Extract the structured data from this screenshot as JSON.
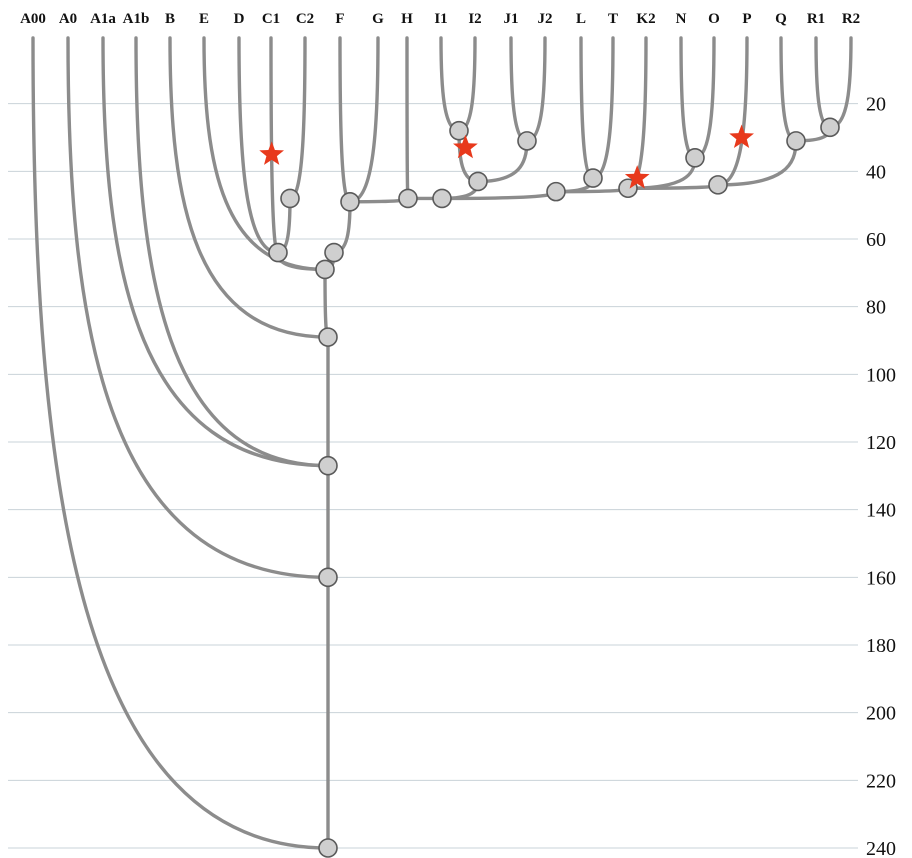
{
  "tree": {
    "tips": [
      "A00",
      "A0",
      "A1a",
      "A1b",
      "B",
      "E",
      "D",
      "C1",
      "C2",
      "F",
      "G",
      "H",
      "I1",
      "I2",
      "J1",
      "J2",
      "L",
      "T",
      "K2",
      "N",
      "O",
      "P",
      "Q",
      "R1",
      "R2"
    ],
    "axis_ticks": [
      20,
      40,
      60,
      80,
      100,
      120,
      140,
      160,
      180,
      200,
      220,
      240
    ],
    "axis_range": [
      0,
      240
    ],
    "colors": {
      "branch": "#8c8c8c",
      "node_fill": "#cfcfcf",
      "node_stroke": "#5a5a5a",
      "star": "#e8391c",
      "grid": "#c9d3d8"
    },
    "nodes": {
      "n_root": 240,
      "n_a0": 160,
      "n_a1": 127,
      "n_b": 89,
      "n_cf": 69,
      "n_c": 64,
      "n_c2": 48,
      "n_f": 64,
      "n_fg": 49,
      "n_h": 48,
      "n_i": 48,
      "n_ij": 43,
      "n_i1": 28,
      "n_j": 31,
      "n_k": 46,
      "n_lt": 42,
      "n_kno": 45,
      "n_no": 36,
      "n_op": 44,
      "n_q": 31,
      "n_r": 27
    },
    "edges": [
      [
        "A00",
        "n_root"
      ],
      [
        "n_a0",
        "n_root"
      ],
      [
        "A0",
        "n_a0"
      ],
      [
        "n_a1",
        "n_a0"
      ],
      [
        "A1a",
        "n_a1"
      ],
      [
        "A1b",
        "n_a1"
      ],
      [
        "n_b",
        "n_a1"
      ],
      [
        "B",
        "n_b"
      ],
      [
        "n_cf",
        "n_b"
      ],
      [
        "E",
        "n_cf"
      ],
      [
        "n_c",
        "n_cf"
      ],
      [
        "D",
        "n_c"
      ],
      [
        "C1",
        "n_c"
      ],
      [
        "n_c2",
        "n_c"
      ],
      [
        "C2",
        "n_c2"
      ],
      [
        "n_f",
        "n_cf"
      ],
      [
        "F",
        "n_fg"
      ],
      [
        "G",
        "n_fg"
      ],
      [
        "n_fg",
        "n_f"
      ],
      [
        "n_h",
        "n_fg"
      ],
      [
        "H",
        "n_h"
      ],
      [
        "n_i",
        "n_h"
      ],
      [
        "n_ij",
        "n_i"
      ],
      [
        "n_i1",
        "n_ij"
      ],
      [
        "I1",
        "n_i1"
      ],
      [
        "I2",
        "n_i1"
      ],
      [
        "n_j",
        "n_ij"
      ],
      [
        "J1",
        "n_j"
      ],
      [
        "J2",
        "n_j"
      ],
      [
        "n_k",
        "n_i"
      ],
      [
        "n_lt",
        "n_k"
      ],
      [
        "L",
        "n_lt"
      ],
      [
        "T",
        "n_lt"
      ],
      [
        "n_kno",
        "n_k"
      ],
      [
        "K2",
        "n_kno"
      ],
      [
        "n_no",
        "n_kno"
      ],
      [
        "N",
        "n_no"
      ],
      [
        "O",
        "n_no"
      ],
      [
        "n_op",
        "n_kno"
      ],
      [
        "P",
        "n_op"
      ],
      [
        "n_q",
        "n_op"
      ],
      [
        "Q",
        "n_q"
      ],
      [
        "n_r",
        "n_q"
      ],
      [
        "R1",
        "n_r"
      ],
      [
        "R2",
        "n_r"
      ]
    ],
    "stars": [
      {
        "on_edge": [
          "C1",
          "n_c"
        ],
        "depth": 35
      },
      {
        "on_edge": [
          "I2",
          "n_i1"
        ],
        "depth": 33
      },
      {
        "on_edge": [
          "K2",
          "n_kno"
        ],
        "depth": 42
      },
      {
        "on_edge": [
          "P",
          "n_op"
        ],
        "depth": 30
      }
    ]
  }
}
